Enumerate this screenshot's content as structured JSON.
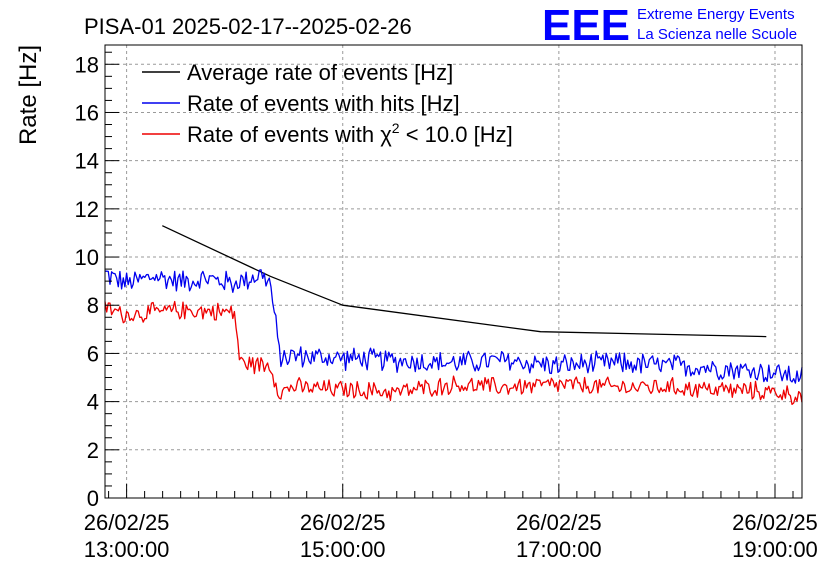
{
  "chart_data": {
    "type": "line",
    "title": "PISA-01 2025-02-17--2025-02-26",
    "ylabel": "Rate [Hz]",
    "xlabel": "",
    "ylim": [
      0,
      18.8
    ],
    "xlim_hours": [
      12.8,
      19.25
    ],
    "y_ticks": [
      0,
      2,
      4,
      6,
      8,
      10,
      12,
      14,
      16,
      18
    ],
    "x_ticks": [
      {
        "value": 13,
        "line1": "26/02/25",
        "line2": "13:00:00"
      },
      {
        "value": 15,
        "line1": "26/02/25",
        "line2": "15:00:00"
      },
      {
        "value": 17,
        "line1": "26/02/25",
        "line2": "17:00:00"
      },
      {
        "value": 19,
        "line1": "26/02/25",
        "line2": "19:00:00"
      }
    ],
    "grid": true,
    "legend_position": "top-left",
    "legend": [
      {
        "label": "Average rate of events [Hz]",
        "color": "#000000"
      },
      {
        "label": "Rate of events with hits [Hz]",
        "color": "#0000ee"
      },
      {
        "label_prefix": "Rate of events with ",
        "label_symbol": "χ",
        "label_sup": "2",
        "label_suffix": " < 10.0 [Hz]",
        "color": "#ee0000"
      }
    ],
    "series": [
      {
        "name": "Average rate of events [Hz]",
        "color": "#000000",
        "x": [
          13.33,
          14.33,
          15.0,
          16.83,
          18.92
        ],
        "y": [
          11.3,
          9.2,
          8.0,
          6.9,
          6.7
        ]
      },
      {
        "name": "Rate of events with hits [Hz]",
        "color": "#0000ee",
        "x": [
          12.8,
          13.0,
          13.25,
          13.5,
          13.75,
          14.0,
          14.25,
          14.33,
          14.42,
          14.5,
          15.0,
          15.5,
          16.0,
          16.5,
          17.0,
          17.5,
          18.0,
          18.5,
          19.0,
          19.25
        ],
        "y": [
          9.3,
          8.9,
          9.2,
          9.0,
          9.1,
          8.9,
          9.3,
          8.9,
          5.8,
          5.9,
          5.8,
          5.7,
          5.6,
          5.7,
          5.5,
          5.6,
          5.5,
          5.4,
          5.2,
          5.0
        ],
        "noise": 0.55
      },
      {
        "name": "Rate of events with χ2 < 10.0 [Hz]",
        "color": "#ee0000",
        "x": [
          12.8,
          13.0,
          13.5,
          14.0,
          14.05,
          14.33,
          14.42,
          14.5,
          15.0,
          15.5,
          16.0,
          16.5,
          17.0,
          17.5,
          18.0,
          18.5,
          19.0,
          19.25
        ],
        "y": [
          7.9,
          7.6,
          7.8,
          7.7,
          5.6,
          5.5,
          4.3,
          4.6,
          4.5,
          4.4,
          4.7,
          4.6,
          4.7,
          4.6,
          4.6,
          4.5,
          4.4,
          4.2
        ],
        "noise": 0.45
      }
    ]
  },
  "logo": {
    "mark": "EEE",
    "line1": "Extreme Energy Events",
    "line2": "La Scienza nelle Scuole"
  }
}
